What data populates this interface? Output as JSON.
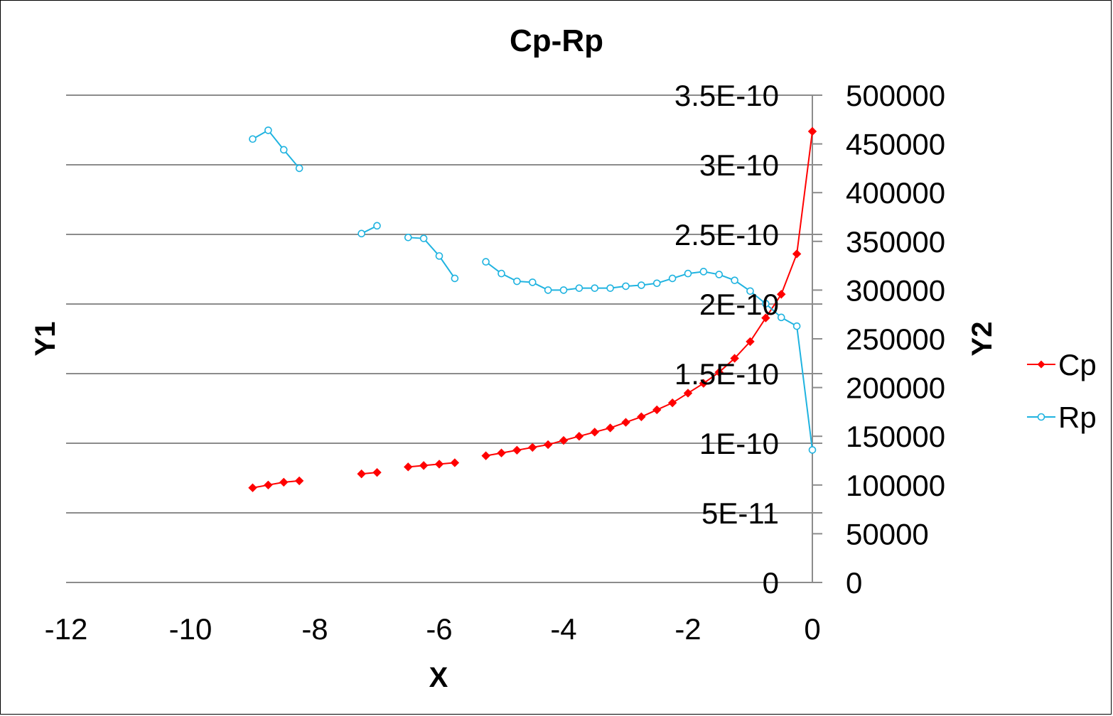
{
  "chart_data": {
    "type": "line",
    "title": "Cp-Rp",
    "xlabel": "X",
    "ylabel": "Y1",
    "y2label": "Y2",
    "xlim": [
      -12,
      0
    ],
    "ylim": [
      0,
      3.5e-10
    ],
    "y2lim": [
      0,
      500000
    ],
    "x_ticks": [
      "-12",
      "-10",
      "-8",
      "-6",
      "-4",
      "-2",
      "0"
    ],
    "y_ticks": [
      "0",
      "5E-11",
      "1E-10",
      "1.5E-10",
      "2E-10",
      "2.5E-10",
      "3E-10",
      "3.5E-10"
    ],
    "y2_ticks": [
      "0",
      "50000",
      "100000",
      "150000",
      "200000",
      "250000",
      "300000",
      "350000",
      "400000",
      "450000",
      "500000"
    ],
    "grid": "horizontal major gridlines",
    "legend_position": "right",
    "series": [
      {
        "name": "Cp",
        "axis": "y1",
        "color": "#ff0000",
        "marker": "diamond",
        "segments": [
          [
            [
              -9.0,
              6.8e-11
            ],
            [
              -8.75,
              7e-11
            ],
            [
              -8.5,
              7.2e-11
            ],
            [
              -8.25,
              7.3e-11
            ]
          ],
          [
            [
              -7.25,
              7.8e-11
            ],
            [
              -7.0,
              7.9e-11
            ]
          ],
          [
            [
              -6.5,
              8.3e-11
            ],
            [
              -6.25,
              8.4e-11
            ],
            [
              -6.0,
              8.5e-11
            ],
            [
              -5.75,
              8.6e-11
            ]
          ],
          [
            [
              -5.25,
              9.1e-11
            ],
            [
              -5.0,
              9.3e-11
            ],
            [
              -4.75,
              9.5e-11
            ],
            [
              -4.5,
              9.7e-11
            ],
            [
              -4.25,
              9.9e-11
            ],
            [
              -4.0,
              1.02e-10
            ],
            [
              -3.75,
              1.05e-10
            ],
            [
              -3.5,
              1.08e-10
            ],
            [
              -3.25,
              1.11e-10
            ],
            [
              -3.0,
              1.15e-10
            ],
            [
              -2.75,
              1.19e-10
            ],
            [
              -2.5,
              1.24e-10
            ],
            [
              -2.25,
              1.29e-10
            ],
            [
              -2.0,
              1.36e-10
            ],
            [
              -1.75,
              1.43e-10
            ],
            [
              -1.5,
              1.51e-10
            ],
            [
              -1.25,
              1.61e-10
            ],
            [
              -1.0,
              1.73e-10
            ],
            [
              -0.75,
              1.9e-10
            ],
            [
              -0.5,
              2.07e-10
            ],
            [
              -0.25,
              2.36e-10
            ],
            [
              0.0,
              3.24e-10
            ]
          ]
        ]
      },
      {
        "name": "Rp",
        "axis": "y2",
        "color": "#1fb3e0",
        "marker": "circle",
        "segments": [
          [
            [
              -9.0,
              455000
            ],
            [
              -8.75,
              464000
            ],
            [
              -8.5,
              444000
            ],
            [
              -8.25,
              425000
            ]
          ],
          [
            [
              -7.25,
              358000
            ],
            [
              -7.0,
              366000
            ]
          ],
          [
            [
              -6.5,
              354000
            ],
            [
              -6.25,
              353000
            ],
            [
              -6.0,
              335000
            ],
            [
              -5.75,
              312000
            ]
          ],
          [
            [
              -5.25,
              329000
            ],
            [
              -5.0,
              317000
            ],
            [
              -4.75,
              309000
            ],
            [
              -4.5,
              308000
            ],
            [
              -4.25,
              300000
            ],
            [
              -4.0,
              300000
            ],
            [
              -3.75,
              302000
            ],
            [
              -3.5,
              302000
            ],
            [
              -3.25,
              302000
            ],
            [
              -3.0,
              304000
            ],
            [
              -2.75,
              305000
            ],
            [
              -2.5,
              307000
            ],
            [
              -2.25,
              312000
            ],
            [
              -2.0,
              317000
            ],
            [
              -1.75,
              319000
            ],
            [
              -1.5,
              316000
            ],
            [
              -1.25,
              310000
            ],
            [
              -1.0,
              299000
            ],
            [
              -0.75,
              286000
            ],
            [
              -0.5,
              272000
            ],
            [
              -0.25,
              263000
            ],
            [
              0.0,
              136000
            ]
          ]
        ]
      }
    ]
  }
}
